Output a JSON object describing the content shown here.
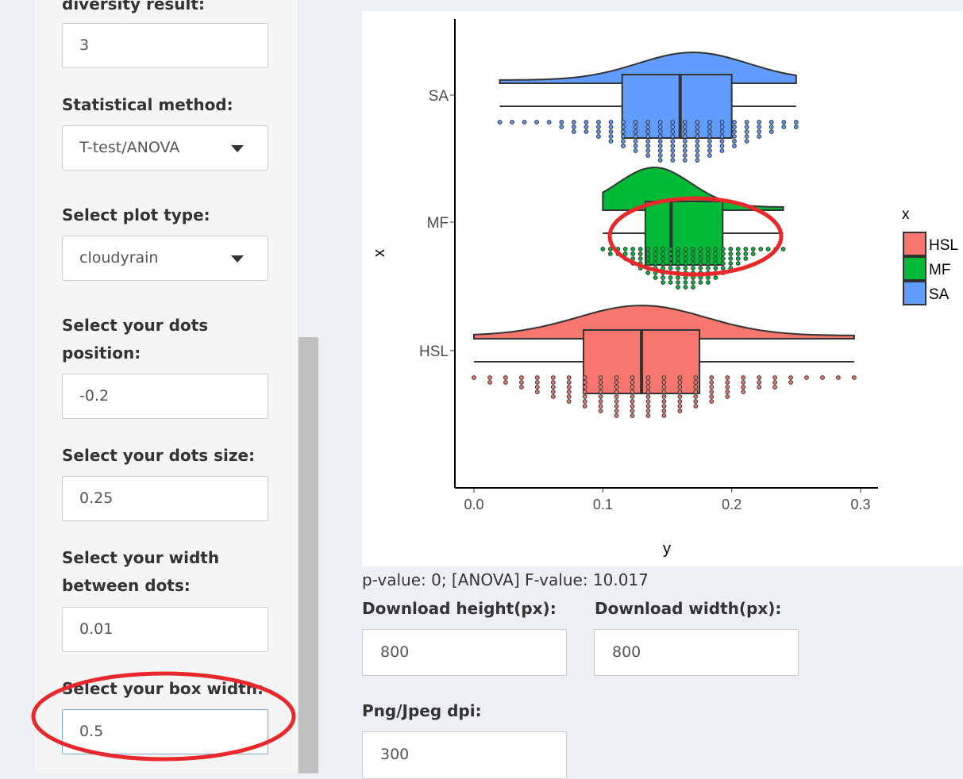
{
  "sidebar": {
    "top_label_partial": "diversity result:",
    "top_value": "3",
    "stat_method_label": "Statistical method:",
    "stat_method_value": "T-test/ANOVA",
    "plot_type_label": "Select plot type:",
    "plot_type_value": "cloudyrain",
    "dots_position_label_1": "Select your dots",
    "dots_position_label_2": "position:",
    "dots_position_value": "-0.2",
    "dots_size_label": "Select your dots size:",
    "dots_size_value": "0.25",
    "width_dots_label_1": "Select your width",
    "width_dots_label_2": "between dots:",
    "width_dots_value": "0.01",
    "box_width_label": "Select your box width:",
    "box_width_value": "0.5"
  },
  "chart_data": {
    "type": "raincloud",
    "xlabel": "y",
    "ylabel": "x",
    "categories": [
      "SA",
      "MF",
      "HSL"
    ],
    "x_ticks": [
      "0.0",
      "0.1",
      "0.2",
      "0.3"
    ],
    "xlim": [
      -0.015,
      0.31
    ],
    "legend": {
      "title": "x",
      "position": "right",
      "entries": [
        "HSL",
        "MF",
        "SA"
      ]
    },
    "colors": {
      "HSL": "#f8766d",
      "MF": "#00ba38",
      "SA": "#619cff"
    },
    "series": [
      {
        "name": "SA",
        "min": 0.02,
        "q1": 0.115,
        "median": 0.16,
        "q3": 0.2,
        "max": 0.25
      },
      {
        "name": "MF",
        "min": 0.1,
        "q1": 0.133,
        "median": 0.153,
        "q3": 0.193,
        "max": 0.24
      },
      {
        "name": "HSL",
        "min": 0.0,
        "q1": 0.085,
        "median": 0.13,
        "q3": 0.175,
        "max": 0.295
      }
    ]
  },
  "results": {
    "stats_text": "p-value: 0; [ANOVA] F-value: 10.017",
    "download_height_label": "Download height(px):",
    "download_height_value": "800",
    "download_width_label": "Download width(px):",
    "download_width_value": "800",
    "dpi_label": "Png/Jpeg dpi:",
    "dpi_value": "300"
  },
  "colors": {
    "annotation": "#e8282b",
    "background": "#ecf0f5"
  }
}
